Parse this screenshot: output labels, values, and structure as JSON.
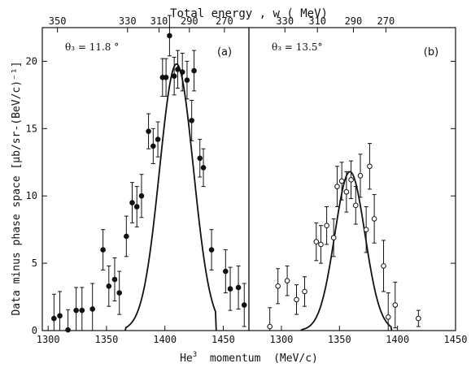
{
  "chart_data": {
    "type": "scatter",
    "top_axis_label": "Total energy , w ( MeV)",
    "xlabel_parts": {
      "base": "He",
      "sup": "3",
      "rest": "  momentum  (MeV/c)"
    },
    "ylabel": "Data minus phase space  [μb/sr-(BeV/c)⁻¹]",
    "ylim": [
      0,
      22.5
    ],
    "yticks": [
      0,
      5,
      10,
      15,
      20
    ],
    "grid": false,
    "panels": [
      {
        "id": "a",
        "tag": "(a)",
        "angle_label": "θ₃ = 11.8 °",
        "xlim": [
          1295,
          1472
        ],
        "xticks": [
          1300,
          1350,
          1400,
          1450
        ],
        "top_ticks": [
          {
            "label": "350",
            "x": 1308
          },
          {
            "label": "330",
            "x": 1368
          },
          {
            "label": "310",
            "x": 1395
          },
          {
            "label": "290",
            "x": 1421
          },
          {
            "label": "270",
            "x": 1451
          }
        ],
        "marker": "filled",
        "points": [
          {
            "x": 1305,
            "y": 0.9,
            "err": 1.8
          },
          {
            "x": 1310,
            "y": 1.1,
            "err": 1.8
          },
          {
            "x": 1317,
            "y": 0.05,
            "err": 1.5
          },
          {
            "x": 1324,
            "y": 1.5,
            "err": 1.7
          },
          {
            "x": 1329,
            "y": 1.5,
            "err": 1.7
          },
          {
            "x": 1338,
            "y": 1.6,
            "err": 1.9
          },
          {
            "x": 1347,
            "y": 6.0,
            "err": 1.5
          },
          {
            "x": 1352,
            "y": 3.3,
            "err": 1.5
          },
          {
            "x": 1357,
            "y": 3.8,
            "err": 1.6
          },
          {
            "x": 1361,
            "y": 2.8,
            "err": 1.6
          },
          {
            "x": 1367,
            "y": 7.0,
            "err": 1.5
          },
          {
            "x": 1372,
            "y": 9.5,
            "err": 1.5
          },
          {
            "x": 1376,
            "y": 9.2,
            "err": 1.5
          },
          {
            "x": 1380,
            "y": 10.0,
            "err": 1.6
          },
          {
            "x": 1386,
            "y": 14.8,
            "err": 1.3
          },
          {
            "x": 1390,
            "y": 13.7,
            "err": 1.3
          },
          {
            "x": 1394,
            "y": 14.2,
            "err": 1.3
          },
          {
            "x": 1398,
            "y": 18.8,
            "err": 1.4
          },
          {
            "x": 1401,
            "y": 18.8,
            "err": 1.4
          },
          {
            "x": 1404,
            "y": 21.9,
            "err": 1.5
          },
          {
            "x": 1408,
            "y": 18.9,
            "err": 1.4
          },
          {
            "x": 1411,
            "y": 19.4,
            "err": 1.4
          },
          {
            "x": 1415,
            "y": 19.2,
            "err": 1.4
          },
          {
            "x": 1419,
            "y": 18.6,
            "err": 1.4
          },
          {
            "x": 1423,
            "y": 15.6,
            "err": 1.5
          },
          {
            "x": 1425,
            "y": 19.3,
            "err": 1.5
          },
          {
            "x": 1430,
            "y": 12.8,
            "err": 1.4
          },
          {
            "x": 1433,
            "y": 12.1,
            "err": 1.4
          },
          {
            "x": 1440,
            "y": 6.0,
            "err": 1.5
          },
          {
            "x": 1452,
            "y": 4.4,
            "err": 1.6
          },
          {
            "x": 1456,
            "y": 3.1,
            "err": 1.6
          },
          {
            "x": 1463,
            "y": 3.2,
            "err": 1.6
          },
          {
            "x": 1468,
            "y": 1.9,
            "err": 1.6
          }
        ],
        "curve": {
          "center": 1410,
          "peak": 19.8,
          "sigma": 14.5,
          "range": [
            1366,
            1444
          ]
        }
      },
      {
        "id": "b",
        "tag": "(b)",
        "angle_label": "θ₃ = 13.5°",
        "xlim": [
          1272,
          1450
        ],
        "xticks": [
          1300,
          1350,
          1400,
          1450
        ],
        "top_ticks": [
          {
            "label": "330",
            "x": 1303
          },
          {
            "label": "310",
            "x": 1331
          },
          {
            "label": "290",
            "x": 1362
          },
          {
            "label": "270",
            "x": 1390
          }
        ],
        "marker": "open",
        "points": [
          {
            "x": 1290,
            "y": 0.3,
            "err": 1.4
          },
          {
            "x": 1297,
            "y": 3.3,
            "err": 1.3
          },
          {
            "x": 1305,
            "y": 3.7,
            "err": 1.1
          },
          {
            "x": 1313,
            "y": 2.3,
            "err": 1.1
          },
          {
            "x": 1320,
            "y": 2.9,
            "err": 1.1
          },
          {
            "x": 1330,
            "y": 6.6,
            "err": 1.4
          },
          {
            "x": 1334,
            "y": 6.4,
            "err": 1.4
          },
          {
            "x": 1339,
            "y": 7.8,
            "err": 1.4
          },
          {
            "x": 1345,
            "y": 6.9,
            "err": 1.4
          },
          {
            "x": 1348,
            "y": 10.7,
            "err": 1.5
          },
          {
            "x": 1352,
            "y": 11.1,
            "err": 1.4
          },
          {
            "x": 1356,
            "y": 10.3,
            "err": 1.5
          },
          {
            "x": 1360,
            "y": 11.2,
            "err": 1.4
          },
          {
            "x": 1364,
            "y": 9.3,
            "err": 1.4
          },
          {
            "x": 1368,
            "y": 11.5,
            "err": 1.6
          },
          {
            "x": 1373,
            "y": 7.5,
            "err": 1.7
          },
          {
            "x": 1376,
            "y": 12.2,
            "err": 1.7
          },
          {
            "x": 1380,
            "y": 8.3,
            "err": 1.8
          },
          {
            "x": 1388,
            "y": 4.8,
            "err": 1.9
          },
          {
            "x": 1392,
            "y": 1.0,
            "err": 1.8
          },
          {
            "x": 1398,
            "y": 1.9,
            "err": 1.7
          },
          {
            "x": 1418,
            "y": 0.9,
            "err": 0.6
          }
        ],
        "curve": {
          "center": 1359,
          "peak": 11.8,
          "sigma": 13.0,
          "range": [
            1317,
            1395
          ]
        }
      }
    ]
  }
}
